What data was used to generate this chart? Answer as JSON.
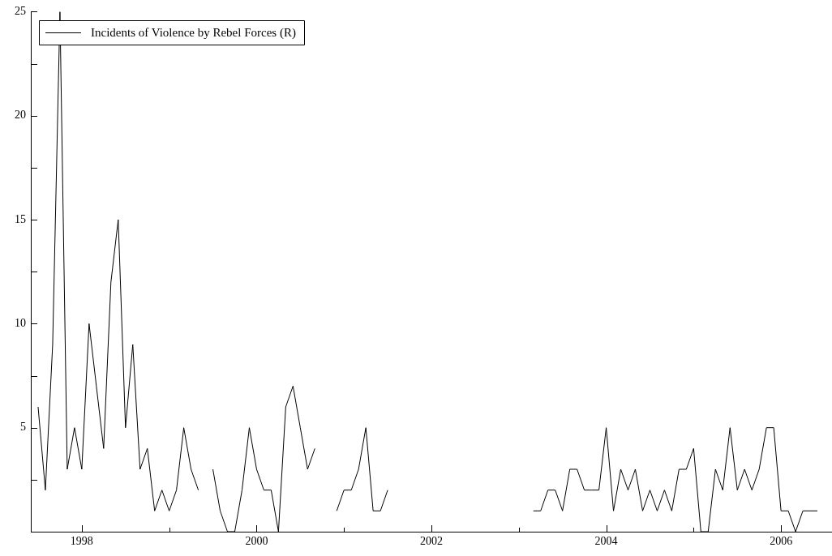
{
  "chart_data": {
    "type": "line",
    "legend": "top left",
    "marker": "none",
    "line_style": "solid",
    "x": [
      "1997-07",
      "1997-08",
      "1997-09",
      "1997-10",
      "1997-11",
      "1997-12",
      "1998-01",
      "1998-02",
      "1998-03",
      "1998-04",
      "1998-05",
      "1998-06",
      "1998-07",
      "1998-08",
      "1998-09",
      "1998-10",
      "1998-11",
      "1998-12",
      "1999-01",
      "1999-02",
      "1999-03",
      "1999-04",
      "1999-05",
      "1999-06",
      "1999-07",
      "1999-08",
      "1999-09",
      "1999-10",
      "1999-11",
      "1999-12",
      "2000-01",
      "2000-02",
      "2000-03",
      "2000-04",
      "2000-05",
      "2000-06",
      "2000-07",
      "2000-08",
      "2000-09",
      "2000-10",
      "2000-11",
      "2000-12",
      "2001-01",
      "2001-02",
      "2001-03",
      "2001-04",
      "2001-05",
      "2001-06",
      "2001-07",
      "2001-08",
      "2001-09",
      "2001-10",
      "2001-11",
      "2001-12",
      "2002-01",
      "2002-02",
      "2002-03",
      "2002-04",
      "2002-05",
      "2002-06",
      "2002-07",
      "2002-08",
      "2002-09",
      "2002-10",
      "2002-11",
      "2002-12",
      "2003-01",
      "2003-02",
      "2003-03",
      "2003-04",
      "2003-05",
      "2003-06",
      "2003-07",
      "2003-08",
      "2003-09",
      "2003-10",
      "2003-11",
      "2003-12",
      "2004-01",
      "2004-02",
      "2004-03",
      "2004-04",
      "2004-05",
      "2004-06",
      "2004-07",
      "2004-08",
      "2004-09",
      "2004-10",
      "2004-11",
      "2004-12",
      "2005-01",
      "2005-02",
      "2005-03",
      "2005-04",
      "2005-05",
      "2005-06",
      "2005-07",
      "2005-08",
      "2005-09",
      "2005-10",
      "2005-11",
      "2005-12",
      "2006-01",
      "2006-02",
      "2006-03",
      "2006-04",
      "2006-05",
      "2006-06"
    ],
    "series": [
      {
        "name": "Incidents of Violence by Rebel Forces (R)",
        "color": "#000000",
        "values": [
          6,
          2,
          9,
          25,
          3,
          5,
          3,
          10,
          7,
          4,
          12,
          15,
          5,
          9,
          3,
          4,
          1,
          2,
          1,
          2,
          5,
          3,
          2,
          null,
          3,
          1,
          0,
          0,
          2,
          5,
          3,
          2,
          2,
          0,
          6,
          7,
          5,
          3,
          4,
          null,
          null,
          1,
          2,
          2,
          3,
          5,
          1,
          1,
          2,
          null,
          null,
          null,
          null,
          null,
          null,
          null,
          null,
          null,
          null,
          null,
          null,
          null,
          null,
          null,
          null,
          null,
          null,
          null,
          1,
          1,
          2,
          2,
          1,
          3,
          3,
          2,
          2,
          2,
          5,
          1,
          3,
          2,
          3,
          1,
          2,
          1,
          2,
          1,
          3,
          3,
          4,
          0,
          0,
          3,
          2,
          5,
          2,
          3,
          2,
          3,
          5,
          5,
          1,
          1,
          0,
          1,
          1,
          1
        ]
      }
    ],
    "xlim": [
      "1997-06",
      "2006-08"
    ],
    "xticks": [
      "1998",
      {
        "value": "1999",
        "label": null
      },
      "2000",
      {
        "value": "2001",
        "label": null
      },
      "2002",
      {
        "value": "2003",
        "label": null
      },
      "2004",
      {
        "value": "2005",
        "label": null
      },
      "2006"
    ],
    "ylim": [
      0,
      25
    ],
    "yticks": [
      {
        "value": 0,
        "label": null
      },
      {
        "value": 2.5,
        "label": null
      },
      5,
      {
        "value": 7.5,
        "label": null
      },
      10,
      {
        "value": 12.5,
        "label": null
      },
      15,
      {
        "value": 17.5,
        "label": null
      },
      20,
      {
        "value": 22.5,
        "label": null
      },
      25
    ]
  }
}
